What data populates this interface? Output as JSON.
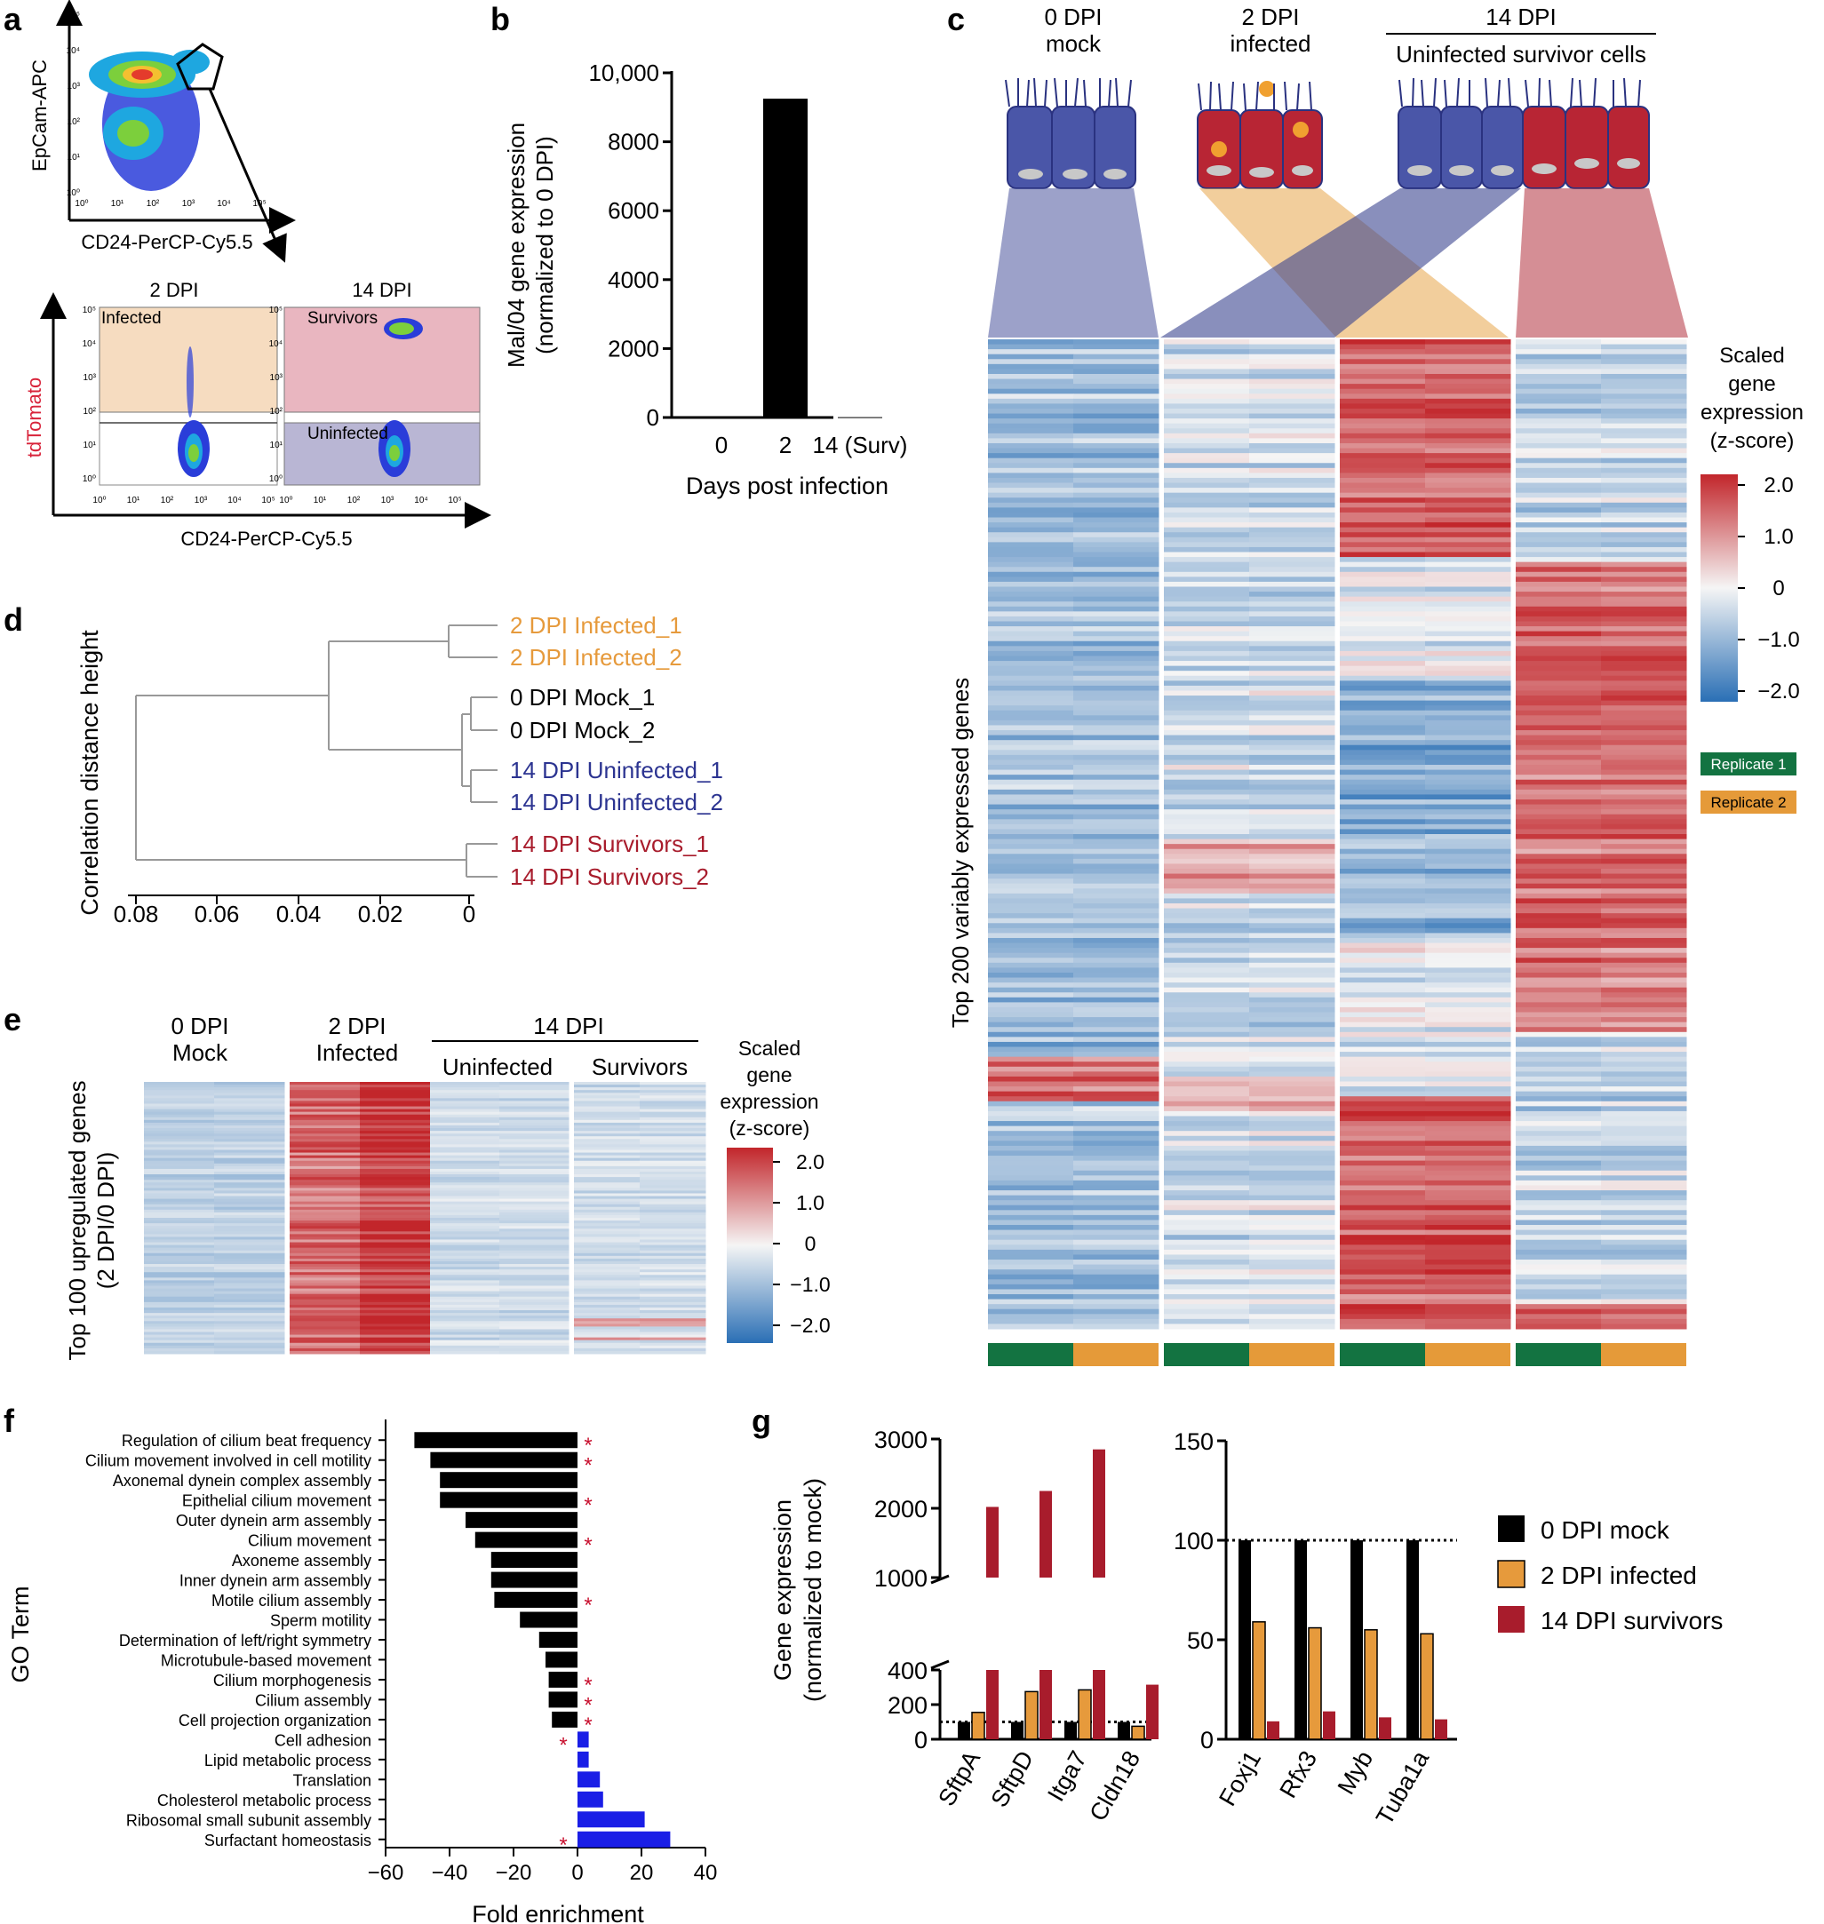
{
  "colors": {
    "black": "#000000",
    "orange": "#e69a3c",
    "navy": "#2c3491",
    "crimson": "#a81c2c",
    "blue_bar": "#1a1ee6",
    "mock_cell": "#4a56a8",
    "infected_cell": "#b82534",
    "replicate1": "#137341",
    "replicate2": "#e59a39",
    "heat_low": "#2a6fb5",
    "heat_mid": "#f5f5f5",
    "heat_high": "#c2262b",
    "gate_orange_fill": "#f6dcc0",
    "gate_pink_fill": "#e9b6c0",
    "gate_lavender_fill": "#b9b6d4"
  },
  "panel_labels": {
    "a": "a",
    "b": "b",
    "c": "c",
    "d": "d",
    "e": "e",
    "f": "f",
    "g": "g"
  },
  "panel_a": {
    "top_y_label": "EpCam-APC",
    "top_x_label": "CD24-PerCP-Cy5.5",
    "bottom_title_left": "2 DPI",
    "bottom_title_right": "14 DPI",
    "gate_infected": "Infected",
    "gate_survivors": "Survivors",
    "gate_uninfected": "Uninfected",
    "y_label": "tdTomato",
    "y_label_color": "#d8233a",
    "x_label": "CD24-PerCP-Cy5.5",
    "log_ticks": [
      "10⁰",
      "10¹",
      "10²",
      "10³",
      "10⁴",
      "10⁵"
    ]
  },
  "panel_c": {
    "header_0": "0 DPI\nmock",
    "header_2": "2 DPI\ninfected",
    "header_14": "14 DPI",
    "header_14_sub": "Uninfected survivor cells",
    "y_label": "Top 200 variably expressed genes",
    "legend_title": "Scaled\ngene\nexpression\n(z-score)",
    "legend_ticks": [
      "2.0",
      "1.0",
      "0",
      "−1.0",
      "−2.0"
    ],
    "replicate1": "Replicate 1",
    "replicate2": "Replicate 2"
  },
  "panel_d": {
    "y_label": "Correlation distance height",
    "leaves": [
      {
        "label": "2 DPI Infected_1",
        "color": "#e69a3c"
      },
      {
        "label": "2 DPI Infected_2",
        "color": "#e69a3c"
      },
      {
        "label": "0 DPI Mock_1",
        "color": "#000000"
      },
      {
        "label": "0 DPI Mock_2",
        "color": "#000000"
      },
      {
        "label": "14 DPI Uninfected_1",
        "color": "#2c3491"
      },
      {
        "label": "14 DPI Uninfected_2",
        "color": "#2c3491"
      },
      {
        "label": "14 DPI Survivors_1",
        "color": "#a81c2c"
      },
      {
        "label": "14 DPI Survivors_2",
        "color": "#a81c2c"
      }
    ],
    "x_ticks": [
      "0.08",
      "0.06",
      "0.04",
      "0.02",
      "0"
    ]
  },
  "panel_e": {
    "col_0": "0 DPI\nMock",
    "col_2": "2 DPI\nInfected",
    "header_14": "14 DPI",
    "col_uninf": "Uninfected",
    "col_surv": "Survivors",
    "y_label": "Top 100 upregulated genes\n(2 DPI/0 DPI)",
    "legend_title": "Scaled\ngene\nexpression\n(z-score)",
    "legend_ticks": [
      "2.0",
      "1.0",
      "0",
      "−1.0",
      "−2.0"
    ]
  },
  "chart_data": [
    {
      "id": "b",
      "type": "bar",
      "categories": [
        "0",
        "2",
        "14 (Surv)"
      ],
      "values": [
        15,
        9250,
        10
      ],
      "xlabel": "Days post infection",
      "ylabel": "Mal/04 gene expression\n(normalized to 0 DPI)",
      "ylim": [
        0,
        10000
      ],
      "yticks": [
        0,
        2000,
        4000,
        6000,
        8000,
        10000
      ],
      "ytick_labels": [
        "0",
        "2000",
        "4000",
        "6000",
        "8000",
        "10,000"
      ]
    },
    {
      "id": "f",
      "type": "bar",
      "orientation": "horizontal",
      "ylabel": "GO Term",
      "xlabel": "Fold enrichment",
      "xlim": [
        -60,
        40
      ],
      "xticks": [
        -60,
        -40,
        -20,
        0,
        20,
        40
      ],
      "xtick_labels": [
        "−60",
        "−40",
        "−20",
        "0",
        "20",
        "40"
      ],
      "categories": [
        "Regulation of cilium beat frequency",
        "Cilium movement involved in cell motility",
        "Axonemal dynein complex assembly",
        "Epithelial cilium movement",
        "Outer dynein arm assembly",
        "Cilium movement",
        "Axoneme assembly",
        "Inner dynein arm assembly",
        "Motile cilium assembly",
        "Sperm motility",
        "Determination of left/right symmetry",
        "Microtubule-based movement",
        "Cilium morphogenesis",
        "Cilium assembly",
        "Cell projection organization",
        "Cell adhesion",
        "Lipid metabolic process",
        "Translation",
        "Cholesterol metabolic process",
        "Ribosomal small subunit assembly",
        "Surfactant homeostasis"
      ],
      "values": [
        -51,
        -46,
        -43,
        -43,
        -35,
        -32,
        -27,
        -27,
        -26,
        -18,
        -12,
        -10,
        -9,
        -9,
        -8,
        3.5,
        3.5,
        7,
        8,
        21,
        29
      ],
      "significant": [
        true,
        true,
        false,
        true,
        false,
        true,
        false,
        false,
        true,
        false,
        false,
        false,
        true,
        true,
        true,
        true,
        false,
        false,
        false,
        false,
        true
      ],
      "star": "*"
    },
    {
      "id": "g_left",
      "type": "bar",
      "categories": [
        "SftpA",
        "SftpD",
        "Itga7",
        "Cldn18"
      ],
      "series": [
        {
          "name": "0 DPI mock",
          "values": [
            100,
            100,
            100,
            100
          ]
        },
        {
          "name": "2 DPI infected",
          "values": [
            155,
            275,
            285,
            75
          ]
        },
        {
          "name": "14 DPI survivors",
          "values": [
            2020,
            2250,
            2850,
            315
          ]
        }
      ],
      "ylabel": "Gene expression\n(normalized to mock)",
      "yticks": [
        0,
        200,
        400,
        1000,
        2000,
        3000
      ],
      "ytick_labels": [
        "0",
        "200",
        "400",
        "1000",
        "2000",
        "3000"
      ],
      "broken_axis": [
        400,
        1000
      ],
      "reference_line": 100
    },
    {
      "id": "g_right",
      "type": "bar",
      "categories": [
        "Foxj1",
        "Rfx3",
        "Myb",
        "Tuba1a"
      ],
      "series": [
        {
          "name": "0 DPI mock",
          "values": [
            100,
            100,
            100,
            100
          ]
        },
        {
          "name": "2 DPI infected",
          "values": [
            59,
            56,
            55,
            53
          ]
        },
        {
          "name": "14 DPI survivors",
          "values": [
            9,
            14,
            11,
            10
          ]
        }
      ],
      "ylim": [
        0,
        150
      ],
      "yticks": [
        0,
        50,
        100,
        150
      ],
      "ytick_labels": [
        "0",
        "50",
        "100",
        "150"
      ],
      "reference_line": 100,
      "legend": [
        "0 DPI mock",
        "2 DPI infected",
        "14 DPI survivors"
      ]
    }
  ]
}
